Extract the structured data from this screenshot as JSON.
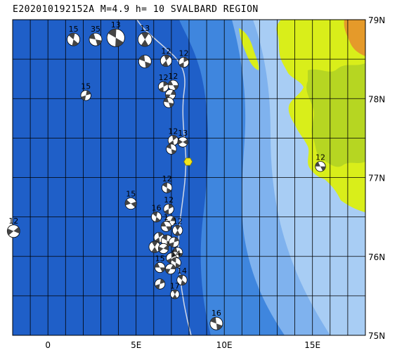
{
  "title": "E202010192152A  M=4.9  h= 10  SVALBARD REGION",
  "colors": {
    "ocean_deep": "#1f5fc8",
    "ocean_mid": "#3f86de",
    "ocean_shelf": "#7fb2ee",
    "ocean_shallow": "#a8cdf4",
    "land_low": "#d9ee1a",
    "land_mid": "#b6d622",
    "land_high": "#e59a2a",
    "ridge_line": "#cfd7e6",
    "epicenter": "#f2e51c",
    "grid": "#000000"
  },
  "extent": {
    "lon_min": -2,
    "lon_max": 18,
    "lat_min": 75,
    "lat_max": 79
  },
  "lat_labels": [
    {
      "lat": 79,
      "text": "79N"
    },
    {
      "lat": 78,
      "text": "78N"
    },
    {
      "lat": 77,
      "text": "77N"
    },
    {
      "lat": 76,
      "text": "76N"
    },
    {
      "lat": 75,
      "text": "75N"
    }
  ],
  "lon_labels": [
    {
      "lon": 0,
      "text": "0"
    },
    {
      "lon": 5,
      "text": "5E"
    },
    {
      "lon": 10,
      "text": "10E"
    },
    {
      "lon": 15,
      "text": "15E"
    }
  ],
  "epicenter": {
    "lon": 7.95,
    "lat": 77.2
  },
  "mechanisms": [
    {
      "lon": 1.45,
      "lat": 78.75,
      "label": "15",
      "size": 1.0,
      "rot": 40
    },
    {
      "lon": 2.7,
      "lat": 78.75,
      "label": "35",
      "size": 1.0,
      "rot": 10
    },
    {
      "lon": 3.85,
      "lat": 78.77,
      "label": "13",
      "size": 1.4,
      "rot": 30
    },
    {
      "lon": 5.5,
      "lat": 78.75,
      "label": "13",
      "size": 1.1,
      "rot": 60
    },
    {
      "lon": 5.5,
      "lat": 78.47,
      "label": "",
      "size": 1.0,
      "rot": 20
    },
    {
      "lon": 6.7,
      "lat": 78.48,
      "label": "12",
      "size": 0.9,
      "rot": 70
    },
    {
      "lon": 7.7,
      "lat": 78.46,
      "label": "12",
      "size": 0.8,
      "rot": 90
    },
    {
      "lon": 6.55,
      "lat": 78.15,
      "label": "12",
      "size": 0.8,
      "rot": 90
    },
    {
      "lon": 7.1,
      "lat": 78.17,
      "label": "12",
      "size": 0.8,
      "rot": 0
    },
    {
      "lon": 6.95,
      "lat": 78.05,
      "label": "",
      "size": 0.8,
      "rot": 120
    },
    {
      "lon": 6.85,
      "lat": 77.95,
      "label": "",
      "size": 0.8,
      "rot": 10
    },
    {
      "lon": 2.15,
      "lat": 78.04,
      "label": "15",
      "size": 0.8,
      "rot": 100
    },
    {
      "lon": 7.1,
      "lat": 77.47,
      "label": "12",
      "size": 0.8,
      "rot": 80
    },
    {
      "lon": 7.65,
      "lat": 77.45,
      "label": "13",
      "size": 0.8,
      "rot": 150
    },
    {
      "lon": 7.0,
      "lat": 77.36,
      "label": "",
      "size": 0.8,
      "rot": 20
    },
    {
      "lon": 15.45,
      "lat": 77.14,
      "label": "12",
      "size": 0.8,
      "rot": 0
    },
    {
      "lon": 6.75,
      "lat": 76.87,
      "label": "12",
      "size": 0.8,
      "rot": 30
    },
    {
      "lon": 4.7,
      "lat": 76.67,
      "label": "15",
      "size": 0.9,
      "rot": 160
    },
    {
      "lon": 6.85,
      "lat": 76.6,
      "label": "12",
      "size": 0.8,
      "rot": 90
    },
    {
      "lon": 6.15,
      "lat": 76.5,
      "label": "16",
      "size": 0.8,
      "rot": 40
    },
    {
      "lon": 6.95,
      "lat": 76.45,
      "label": "",
      "size": 0.8,
      "rot": 120
    },
    {
      "lon": 6.7,
      "lat": 76.38,
      "label": "1",
      "size": 0.8,
      "rot": 0
    },
    {
      "lon": 7.35,
      "lat": 76.33,
      "label": "12",
      "size": 0.8,
      "rot": 60
    },
    {
      "lon": 6.3,
      "lat": 76.24,
      "label": "",
      "size": 0.8,
      "rot": 80
    },
    {
      "lon": 6.75,
      "lat": 76.2,
      "label": "",
      "size": 0.9,
      "rot": 30
    },
    {
      "lon": 7.15,
      "lat": 76.18,
      "label": "",
      "size": 0.8,
      "rot": 100
    },
    {
      "lon": 6.05,
      "lat": 76.12,
      "label": "",
      "size": 0.9,
      "rot": 60
    },
    {
      "lon": 6.55,
      "lat": 76.1,
      "label": "",
      "size": 0.8,
      "rot": 140
    },
    {
      "lon": 7.35,
      "lat": 76.05,
      "label": "",
      "size": 0.8,
      "rot": 10
    },
    {
      "lon": 7.0,
      "lat": 75.98,
      "label": "",
      "size": 0.8,
      "rot": 90
    },
    {
      "lon": 7.25,
      "lat": 75.92,
      "label": "14",
      "size": 0.8,
      "rot": 30
    },
    {
      "lon": 6.35,
      "lat": 75.86,
      "label": "15",
      "size": 0.8,
      "rot": 0
    },
    {
      "lon": 6.95,
      "lat": 75.84,
      "label": "",
      "size": 0.8,
      "rot": 120
    },
    {
      "lon": 7.6,
      "lat": 75.7,
      "label": "14",
      "size": 0.8,
      "rot": 40
    },
    {
      "lon": 6.35,
      "lat": 75.65,
      "label": "",
      "size": 0.8,
      "rot": 100
    },
    {
      "lon": 7.2,
      "lat": 75.52,
      "label": "17",
      "size": 0.7,
      "rot": 60
    },
    {
      "lon": 9.55,
      "lat": 75.15,
      "label": "16",
      "size": 1.0,
      "rot": 20
    },
    {
      "lon": -1.95,
      "lat": 76.32,
      "label": "12",
      "size": 1.0,
      "rot": 140
    }
  ]
}
